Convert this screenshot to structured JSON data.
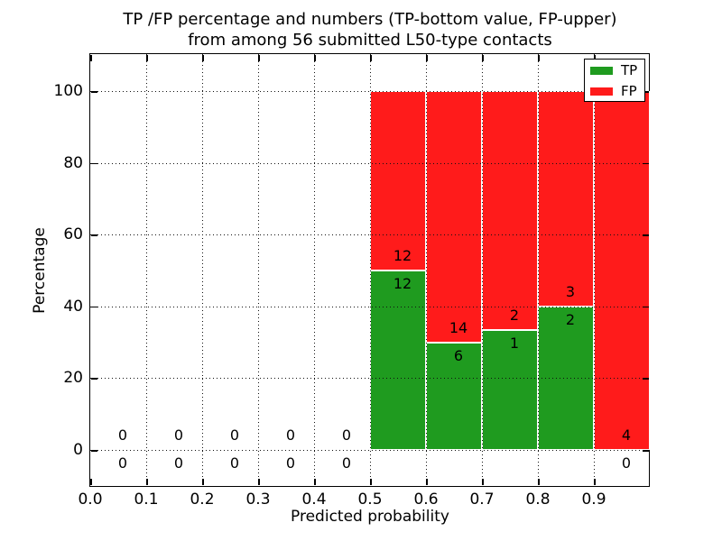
{
  "figure": {
    "title_line1": "TP /FP percentage and numbers (TP-bottom value, FP-upper)",
    "title_line2": "from among 56 submitted L50-type contacts",
    "xlabel": "Predicted probability",
    "ylabel": "Percentage"
  },
  "legend": {
    "items": [
      {
        "label": "TP",
        "color": "#1f9b1f"
      },
      {
        "label": "FP",
        "color": "#ff1b1b"
      }
    ]
  },
  "chart_data": {
    "type": "bar",
    "stacked": true,
    "units": "percent",
    "title": "TP /FP percentage and numbers (TP-bottom value, FP-upper) from among 56 submitted L50-type contacts",
    "xlabel": "Predicted probability",
    "ylabel": "Percentage",
    "xlim": [
      0.0,
      1.0
    ],
    "ylim": [
      -10,
      110
    ],
    "xticks": [
      "0.0",
      "0.1",
      "0.2",
      "0.3",
      "0.4",
      "0.5",
      "0.6",
      "0.7",
      "0.8",
      "0.9"
    ],
    "yticks": [
      "0",
      "20",
      "40",
      "60",
      "80",
      "100"
    ],
    "grid": true,
    "grid_style": "dotted",
    "legend_position": "upper right",
    "total_contacts": 56,
    "annotation_rule": "FP count above TP/FP boundary, TP count below boundary",
    "colors": {
      "tp": "#1f9b1f",
      "fp": "#ff1b1b"
    },
    "bins": [
      {
        "x_start": 0.0,
        "x_end": 0.1,
        "tp_count": 0,
        "fp_count": 0,
        "tp_pct": 0,
        "fp_pct": 0
      },
      {
        "x_start": 0.1,
        "x_end": 0.2,
        "tp_count": 0,
        "fp_count": 0,
        "tp_pct": 0,
        "fp_pct": 0
      },
      {
        "x_start": 0.2,
        "x_end": 0.3,
        "tp_count": 0,
        "fp_count": 0,
        "tp_pct": 0,
        "fp_pct": 0
      },
      {
        "x_start": 0.3,
        "x_end": 0.4,
        "tp_count": 0,
        "fp_count": 0,
        "tp_pct": 0,
        "fp_pct": 0
      },
      {
        "x_start": 0.4,
        "x_end": 0.5,
        "tp_count": 0,
        "fp_count": 0,
        "tp_pct": 0,
        "fp_pct": 0
      },
      {
        "x_start": 0.5,
        "x_end": 0.6,
        "tp_count": 12,
        "fp_count": 12,
        "tp_pct": 50.0,
        "fp_pct": 50.0
      },
      {
        "x_start": 0.6,
        "x_end": 0.7,
        "tp_count": 6,
        "fp_count": 14,
        "tp_pct": 30.0,
        "fp_pct": 70.0
      },
      {
        "x_start": 0.7,
        "x_end": 0.8,
        "tp_count": 1,
        "fp_count": 2,
        "tp_pct": 33.3,
        "fp_pct": 66.7
      },
      {
        "x_start": 0.8,
        "x_end": 0.9,
        "tp_count": 2,
        "fp_count": 3,
        "tp_pct": 40.0,
        "fp_pct": 60.0
      },
      {
        "x_start": 0.9,
        "x_end": 1.0,
        "tp_count": 0,
        "fp_count": 4,
        "tp_pct": 0.0,
        "fp_pct": 100.0
      }
    ]
  }
}
